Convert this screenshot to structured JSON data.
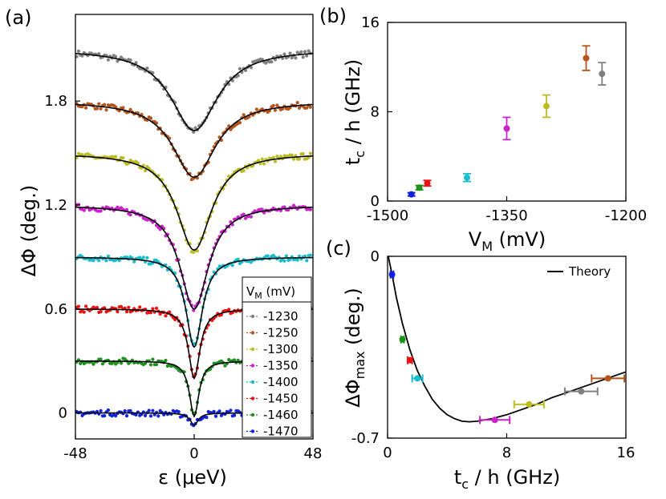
{
  "panel_labels": {
    "a": "(a)",
    "b": "(b)",
    "c": "(c)"
  },
  "chart_data": [
    {
      "panel": "(a)",
      "type": "scatter",
      "xlabel": "ε (μeV)",
      "ylabel": "ΔΦ (deg.)",
      "xlim": [
        -48,
        48
      ],
      "ylim": [
        -0.15,
        2.3
      ],
      "xticks": [
        "-48",
        "0",
        "48"
      ],
      "yticks": [
        "0",
        "0.6",
        "1.2",
        "1.8"
      ],
      "xtick_values": [
        -48,
        0,
        48
      ],
      "ytick_values": [
        0,
        0.6,
        1.2,
        1.8
      ],
      "legend": {
        "title": "V",
        "title_sub": "M",
        "title_unit": " (mV)",
        "placement": "lower-right"
      },
      "series": [
        {
          "name": "-1230",
          "color": "#808080",
          "offset": 2.1,
          "depth": 0.47,
          "width": 11.5
        },
        {
          "name": "-1250",
          "color": "#b5541c",
          "offset": 1.8,
          "depth": 0.44,
          "width": 10.5
        },
        {
          "name": "-1300",
          "color": "#bcbd22",
          "offset": 1.5,
          "depth": 0.56,
          "width": 8.5
        },
        {
          "name": "-1350",
          "color": "#cc22cc",
          "offset": 1.2,
          "depth": 0.6,
          "width": 7.0
        },
        {
          "name": "-1400",
          "color": "#17becf",
          "offset": 0.9,
          "depth": 0.52,
          "width": 4.0
        },
        {
          "name": "-1450",
          "color": "#ee1111",
          "offset": 0.6,
          "depth": 0.4,
          "width": 2.8
        },
        {
          "name": "-1460",
          "color": "#1f8f1f",
          "offset": 0.3,
          "depth": 0.32,
          "width": 2.3
        },
        {
          "name": "-1470",
          "color": "#1122dd",
          "offset": 0.0,
          "depth": 0.07,
          "width": 2.0
        }
      ]
    },
    {
      "panel": "(b)",
      "type": "scatter",
      "xlabel": "V",
      "xlabel_sub": "M",
      "xlabel_unit": " (mV)",
      "ylabel": "t",
      "ylabel_sub": "c",
      "ylabel_unit": " / h (GHz)",
      "xlim": [
        -1500,
        -1200
      ],
      "ylim": [
        0,
        16
      ],
      "xticks": [
        "-1500",
        "-1350",
        "-1200"
      ],
      "yticks": [
        "0",
        "8",
        "16"
      ],
      "xtick_values": [
        -1500,
        -1350,
        -1200
      ],
      "ytick_values": [
        0,
        8,
        16
      ],
      "points": [
        {
          "x": -1470,
          "y": 0.6,
          "err": 0.15,
          "color": "#1122dd"
        },
        {
          "x": -1460,
          "y": 1.2,
          "err": 0.2,
          "color": "#1f8f1f"
        },
        {
          "x": -1450,
          "y": 1.6,
          "err": 0.25,
          "color": "#ee1111"
        },
        {
          "x": -1400,
          "y": 2.1,
          "err": 0.35,
          "color": "#17becf"
        },
        {
          "x": -1350,
          "y": 6.5,
          "err": 1.0,
          "color": "#cc22cc"
        },
        {
          "x": -1300,
          "y": 8.5,
          "err": 1.0,
          "color": "#bcbd22"
        },
        {
          "x": -1250,
          "y": 12.8,
          "err": 1.1,
          "color": "#b5541c"
        },
        {
          "x": -1230,
          "y": 11.4,
          "err": 1.0,
          "color": "#808080"
        }
      ]
    },
    {
      "panel": "(c)",
      "type": "scatter",
      "xlabel": "t",
      "xlabel_sub": "c",
      "xlabel_unit": " / h (GHz)",
      "ylabel": "ΔΦ",
      "ylabel_sub": "max",
      "ylabel_unit": " (deg.)",
      "xlim": [
        0,
        16
      ],
      "ylim": [
        -0.7,
        0
      ],
      "xticks": [
        "0",
        "8",
        "16"
      ],
      "yticks": [
        "0",
        "-0.7"
      ],
      "xtick_values": [
        0,
        8,
        16
      ],
      "ytick_values": [
        0,
        -0.7
      ],
      "legend": {
        "entries": [
          "Theory"
        ],
        "placement": "top-right"
      },
      "points": [
        {
          "x": 0.3,
          "y": -0.07,
          "xerr": 0.1,
          "color": "#1122dd"
        },
        {
          "x": 1.0,
          "y": -0.32,
          "xerr": 0.1,
          "color": "#1f8f1f"
        },
        {
          "x": 1.5,
          "y": -0.4,
          "xerr": 0.15,
          "color": "#ee1111"
        },
        {
          "x": 2.0,
          "y": -0.47,
          "xerr": 0.35,
          "color": "#17becf"
        },
        {
          "x": 7.2,
          "y": -0.63,
          "xerr": 1.0,
          "color": "#cc22cc"
        },
        {
          "x": 9.5,
          "y": -0.57,
          "xerr": 1.0,
          "color": "#bcbd22"
        },
        {
          "x": 14.8,
          "y": -0.47,
          "xerr": 1.1,
          "color": "#b5541c"
        },
        {
          "x": 13.0,
          "y": -0.52,
          "xerr": 1.1,
          "color": "#808080"
        }
      ],
      "theory_curve": {
        "x": [
          0.05,
          0.3,
          0.6,
          1,
          1.5,
          2,
          2.5,
          3,
          3.5,
          4,
          4.5,
          5,
          5.5,
          6,
          6.5,
          7,
          8,
          9,
          10,
          11,
          12,
          13,
          14,
          15,
          16
        ],
        "y": [
          0,
          -0.07,
          -0.16,
          -0.26,
          -0.36,
          -0.44,
          -0.5,
          -0.55,
          -0.585,
          -0.61,
          -0.625,
          -0.635,
          -0.637,
          -0.635,
          -0.63,
          -0.625,
          -0.61,
          -0.59,
          -0.57,
          -0.545,
          -0.525,
          -0.505,
          -0.485,
          -0.465,
          -0.445
        ]
      }
    }
  ]
}
